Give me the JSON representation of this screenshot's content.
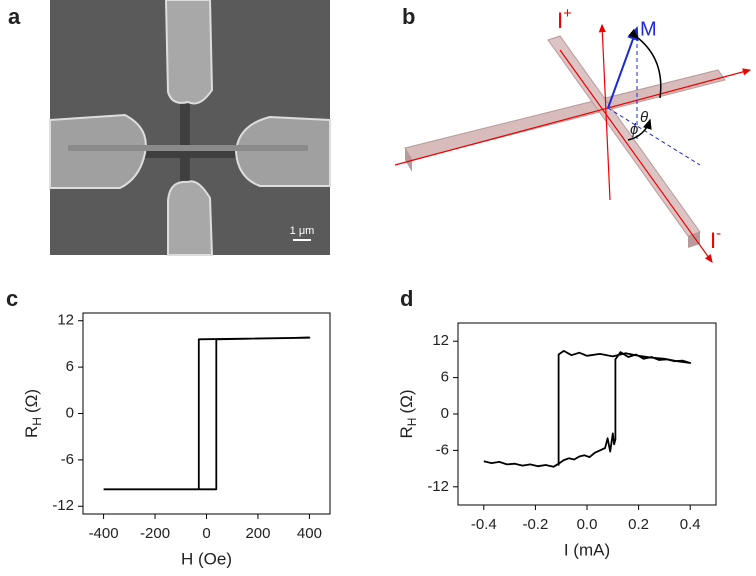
{
  "panel_labels": [
    "a",
    "b",
    "c",
    "d"
  ],
  "sem": {
    "scale_bar": "1 μm"
  },
  "diagram": {
    "current_plus": "I",
    "plus": "+",
    "current_minus": "I",
    "minus": "-",
    "magnetization": "M",
    "theta": "θ",
    "phi": "ϕ"
  },
  "chart_data": [
    {
      "type": "line",
      "xlabel": "H (Oe)",
      "ylabel": "R",
      "ylabel_sub": "H",
      "ylabel_unit": "(Ω)",
      "xlim": [
        -480,
        480
      ],
      "xticks": [
        -400,
        -200,
        0,
        200,
        400
      ],
      "ylim": [
        -13,
        13
      ],
      "yticks": [
        -12,
        -6,
        0,
        6,
        12
      ],
      "series": [
        {
          "color": "#000000",
          "x": [
            -400,
            38,
            38,
            400,
            -30,
            -30,
            -400
          ],
          "values": [
            -9.8,
            -9.8,
            9.6,
            9.8,
            9.6,
            -9.8,
            -9.8
          ]
        }
      ]
    },
    {
      "type": "line",
      "xlabel": "I (mA)",
      "ylabel": "R",
      "ylabel_sub": "H",
      "ylabel_unit": "(Ω)",
      "xlim": [
        -0.5,
        0.5
      ],
      "xticks": [
        -0.4,
        -0.2,
        {
          "value": 0,
          "label": "0.0"
        },
        0.2,
        0.4
      ],
      "ylim": [
        -15,
        15
      ],
      "yticks": [
        -12,
        -6,
        0,
        6,
        12
      ],
      "series": [
        {
          "color": "#000000",
          "x": [
            -0.4,
            -0.37,
            -0.34,
            -0.31,
            -0.28,
            -0.25,
            -0.22,
            -0.19,
            -0.16,
            -0.13,
            -0.11,
            -0.09,
            -0.07,
            -0.05,
            -0.03,
            -0.01,
            0.01,
            0.03,
            0.05,
            0.07,
            0.08,
            0.09,
            0.1,
            0.105,
            0.11,
            0.11,
            0.13,
            0.16,
            0.19,
            0.22,
            0.25,
            0.28,
            0.31,
            0.34,
            0.37,
            0.4,
            0.35,
            0.3,
            0.25,
            0.2,
            0.15,
            0.1,
            0.05,
            0.0,
            -0.03,
            -0.06,
            -0.09,
            -0.11,
            -0.11
          ],
          "values": [
            -7.8,
            -8.1,
            -7.9,
            -8.3,
            -8.2,
            -8.5,
            -8.3,
            -8.6,
            -8.4,
            -8.7,
            -8.2,
            -7.6,
            -7.3,
            -7.5,
            -7.0,
            -6.8,
            -7.1,
            -6.4,
            -6.0,
            -5.6,
            -4.0,
            -6.2,
            -3.2,
            -5.0,
            -4.2,
            9.0,
            10.2,
            9.4,
            9.8,
            9.1,
            9.4,
            8.9,
            9.0,
            8.7,
            8.8,
            8.4,
            8.7,
            9.1,
            9.3,
            9.6,
            10.0,
            9.5,
            9.9,
            9.6,
            10.1,
            9.7,
            10.4,
            9.8,
            -8.5
          ]
        }
      ]
    }
  ]
}
